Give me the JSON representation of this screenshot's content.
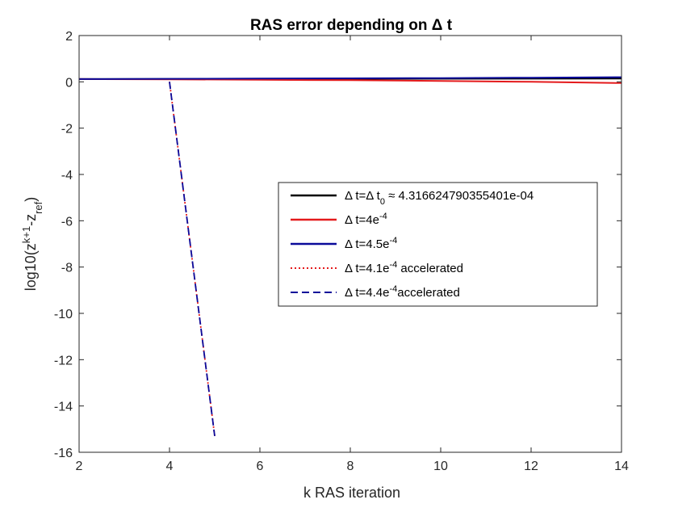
{
  "chart_data": {
    "type": "line",
    "title": "RAS error depending on Δ t",
    "xlabel": "k RAS iteration",
    "ylabel": {
      "base": "log10(z",
      "sup": "k+1",
      "mid": "-z",
      "sub": "ref",
      "end": ")"
    },
    "xlim": [
      2,
      14
    ],
    "ylim": [
      -16,
      2
    ],
    "xticks": [
      2,
      4,
      6,
      8,
      10,
      12,
      14
    ],
    "yticks": [
      2,
      0,
      -2,
      -4,
      -6,
      -8,
      -10,
      -12,
      -14,
      -16
    ],
    "grid": false,
    "legend_position": "center-right",
    "series": [
      {
        "legend": {
          "pre": "Δ t=Δ t",
          "sub": "0",
          "post": " ≈ 4.316624790355401e-04"
        },
        "color": "#000000",
        "style": "solid",
        "x": [
          2,
          14
        ],
        "y": [
          0.12,
          0.14
        ]
      },
      {
        "legend": {
          "pre": "Δ t=4e",
          "sup": "-4",
          "post": ""
        },
        "color": "#e41a1c",
        "style": "solid",
        "x": [
          2,
          4,
          6,
          8,
          10,
          12,
          14
        ],
        "y": [
          0.12,
          0.11,
          0.09,
          0.07,
          0.04,
          0.0,
          -0.05
        ]
      },
      {
        "legend": {
          "pre": "Δ t=4.5e",
          "sup": "-4",
          "post": ""
        },
        "color": "#0a0a9a",
        "style": "solid",
        "x": [
          2,
          4,
          6,
          8,
          10,
          12,
          14
        ],
        "y": [
          0.12,
          0.13,
          0.14,
          0.15,
          0.16,
          0.18,
          0.2
        ]
      },
      {
        "legend": {
          "pre": "Δ t=4.1e",
          "sup": "-4",
          "post": " accelerated"
        },
        "color": "#e41a1c",
        "style": "dotted",
        "x": [
          4,
          5
        ],
        "y": [
          0.0,
          -15.3
        ]
      },
      {
        "legend": {
          "pre": "Δ t=4.4e",
          "sup": "-4",
          "post": "accelerated"
        },
        "color": "#0a0a9a",
        "style": "dashed",
        "x": [
          4,
          5
        ],
        "y": [
          0.0,
          -15.3
        ]
      }
    ]
  }
}
